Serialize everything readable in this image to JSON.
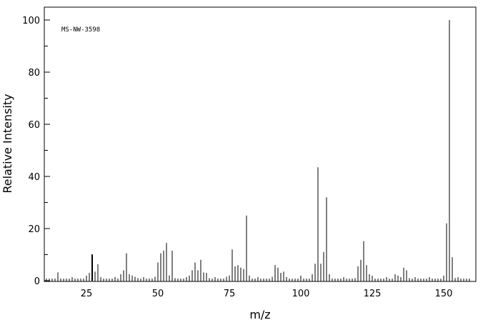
{
  "chart_data": {
    "type": "bar",
    "annotation": "MS-NW-3598",
    "xlabel": "m/z",
    "ylabel": "Relative Intensity",
    "xlim": [
      10,
      160
    ],
    "ylim": [
      0,
      105
    ],
    "x_ticks": [
      25,
      50,
      75,
      100,
      125,
      150
    ],
    "y_ticks": [
      0,
      20,
      40,
      60,
      80,
      100
    ],
    "grid": false,
    "legend": "none",
    "bar_color": "#000000",
    "peaks": [
      {
        "x": 15,
        "y": 3.2
      },
      {
        "x": 26,
        "y": 3.0
      },
      {
        "x": 27,
        "y": 10.1
      },
      {
        "x": 28,
        "y": 3.5
      },
      {
        "x": 29,
        "y": 6.3
      },
      {
        "x": 30,
        "y": 1.0
      },
      {
        "x": 37,
        "y": 2.5
      },
      {
        "x": 38,
        "y": 4.0
      },
      {
        "x": 39,
        "y": 10.5
      },
      {
        "x": 40,
        "y": 2.5
      },
      {
        "x": 41,
        "y": 2.0
      },
      {
        "x": 42,
        "y": 1.5
      },
      {
        "x": 43,
        "y": 1.0
      },
      {
        "x": 49,
        "y": 1.5
      },
      {
        "x": 50,
        "y": 7.0
      },
      {
        "x": 51,
        "y": 10.5
      },
      {
        "x": 52,
        "y": 11.5
      },
      {
        "x": 53,
        "y": 14.5
      },
      {
        "x": 54,
        "y": 2.0
      },
      {
        "x": 55,
        "y": 11.5
      },
      {
        "x": 56,
        "y": 1.0
      },
      {
        "x": 61,
        "y": 2.0
      },
      {
        "x": 62,
        "y": 4.0
      },
      {
        "x": 63,
        "y": 7.0
      },
      {
        "x": 64,
        "y": 4.0
      },
      {
        "x": 65,
        "y": 8.0
      },
      {
        "x": 66,
        "y": 3.2
      },
      {
        "x": 67,
        "y": 3.0
      },
      {
        "x": 68,
        "y": 1.0
      },
      {
        "x": 74,
        "y": 1.5
      },
      {
        "x": 75,
        "y": 2.0
      },
      {
        "x": 76,
        "y": 12.0
      },
      {
        "x": 77,
        "y": 5.5
      },
      {
        "x": 78,
        "y": 6.0
      },
      {
        "x": 79,
        "y": 5.0
      },
      {
        "x": 80,
        "y": 4.5
      },
      {
        "x": 81,
        "y": 25.0
      },
      {
        "x": 82,
        "y": 2.0
      },
      {
        "x": 90,
        "y": 1.5
      },
      {
        "x": 91,
        "y": 6.0
      },
      {
        "x": 92,
        "y": 5.0
      },
      {
        "x": 93,
        "y": 3.0
      },
      {
        "x": 94,
        "y": 3.5
      },
      {
        "x": 104,
        "y": 2.5
      },
      {
        "x": 105,
        "y": 6.5
      },
      {
        "x": 106,
        "y": 43.5
      },
      {
        "x": 107,
        "y": 6.5
      },
      {
        "x": 108,
        "y": 11.0
      },
      {
        "x": 109,
        "y": 32.0
      },
      {
        "x": 110,
        "y": 2.5
      },
      {
        "x": 119,
        "y": 1.0
      },
      {
        "x": 120,
        "y": 5.5
      },
      {
        "x": 121,
        "y": 8.0
      },
      {
        "x": 122,
        "y": 15.2
      },
      {
        "x": 123,
        "y": 6.0
      },
      {
        "x": 124,
        "y": 2.5
      },
      {
        "x": 133,
        "y": 2.5
      },
      {
        "x": 134,
        "y": 2.0
      },
      {
        "x": 136,
        "y": 5.0
      },
      {
        "x": 137,
        "y": 4.0
      },
      {
        "x": 138,
        "y": 1.0
      },
      {
        "x": 150,
        "y": 1.0
      },
      {
        "x": 151,
        "y": 22.0
      },
      {
        "x": 152,
        "y": 100
      },
      {
        "x": 153,
        "y": 9.0
      },
      {
        "x": 154,
        "y": 1.0
      }
    ]
  }
}
